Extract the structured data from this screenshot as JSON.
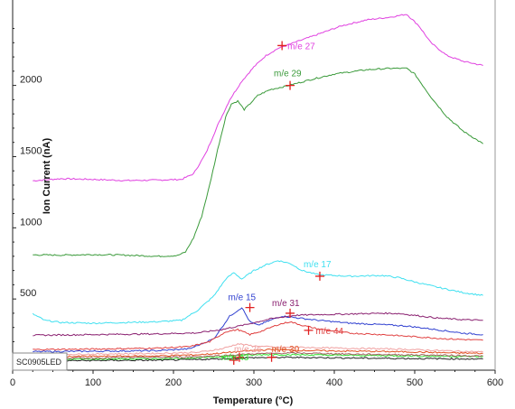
{
  "chart_data": {
    "type": "line",
    "xlabel": "Temperature (°C)",
    "ylabel": "Ion Current (nA)",
    "xlim": [
      0,
      600
    ],
    "ylim": [
      0,
      2600
    ],
    "xticks": [
      0,
      100,
      200,
      300,
      400,
      500,
      600
    ],
    "yticks": [
      500,
      1000,
      1500,
      2000
    ],
    "grid": false,
    "sample_label": "SC0905LED",
    "series": [
      {
        "name": "m/e 27",
        "color": "#e040e0",
        "marker": {
          "x": 335,
          "y": 2280
        },
        "points": [
          [
            25,
            1330
          ],
          [
            60,
            1345
          ],
          [
            100,
            1340
          ],
          [
            140,
            1332
          ],
          [
            180,
            1335
          ],
          [
            210,
            1340
          ],
          [
            225,
            1380
          ],
          [
            240,
            1520
          ],
          [
            255,
            1720
          ],
          [
            270,
            1900
          ],
          [
            285,
            2030
          ],
          [
            300,
            2130
          ],
          [
            315,
            2210
          ],
          [
            330,
            2260
          ],
          [
            350,
            2300
          ],
          [
            380,
            2360
          ],
          [
            410,
            2420
          ],
          [
            440,
            2460
          ],
          [
            470,
            2480
          ],
          [
            490,
            2500
          ],
          [
            505,
            2420
          ],
          [
            520,
            2300
          ],
          [
            540,
            2210
          ],
          [
            560,
            2170
          ],
          [
            585,
            2140
          ]
        ]
      },
      {
        "name": "m/e 29",
        "color": "#3a9a3a",
        "marker": {
          "x": 345,
          "y": 2000
        },
        "points": [
          [
            25,
            810
          ],
          [
            60,
            808
          ],
          [
            100,
            812
          ],
          [
            140,
            808
          ],
          [
            180,
            800
          ],
          [
            205,
            805
          ],
          [
            215,
            830
          ],
          [
            225,
            930
          ],
          [
            235,
            1080
          ],
          [
            245,
            1300
          ],
          [
            255,
            1550
          ],
          [
            265,
            1780
          ],
          [
            272,
            1870
          ],
          [
            280,
            1890
          ],
          [
            288,
            1830
          ],
          [
            295,
            1870
          ],
          [
            305,
            1930
          ],
          [
            320,
            1970
          ],
          [
            340,
            1995
          ],
          [
            370,
            2040
          ],
          [
            400,
            2080
          ],
          [
            440,
            2110
          ],
          [
            470,
            2120
          ],
          [
            490,
            2120
          ],
          [
            500,
            2080
          ],
          [
            520,
            1920
          ],
          [
            540,
            1780
          ],
          [
            560,
            1680
          ],
          [
            585,
            1590
          ]
        ]
      },
      {
        "name": "m/e 17",
        "color": "#40e0f0",
        "marker": {
          "x": 382,
          "y": 660
        },
        "points": [
          [
            25,
            395
          ],
          [
            40,
            350
          ],
          [
            60,
            335
          ],
          [
            100,
            330
          ],
          [
            140,
            335
          ],
          [
            180,
            340
          ],
          [
            210,
            350
          ],
          [
            230,
            420
          ],
          [
            250,
            520
          ],
          [
            265,
            640
          ],
          [
            275,
            685
          ],
          [
            285,
            640
          ],
          [
            300,
            700
          ],
          [
            315,
            740
          ],
          [
            330,
            770
          ],
          [
            345,
            750
          ],
          [
            360,
            700
          ],
          [
            380,
            670
          ],
          [
            420,
            660
          ],
          [
            460,
            665
          ],
          [
            480,
            650
          ],
          [
            500,
            620
          ],
          [
            530,
            580
          ],
          [
            560,
            545
          ],
          [
            585,
            525
          ]
        ]
      },
      {
        "name": "m/e 15",
        "color": "#3040d0",
        "marker": {
          "x": 295,
          "y": 440
        },
        "points": [
          [
            25,
            130
          ],
          [
            100,
            133
          ],
          [
            180,
            137
          ],
          [
            220,
            150
          ],
          [
            250,
            220
          ],
          [
            270,
            380
          ],
          [
            285,
            440
          ],
          [
            295,
            340
          ],
          [
            305,
            315
          ],
          [
            320,
            350
          ],
          [
            335,
            380
          ],
          [
            350,
            370
          ],
          [
            380,
            350
          ],
          [
            420,
            330
          ],
          [
            460,
            320
          ],
          [
            490,
            310
          ],
          [
            520,
            290
          ],
          [
            560,
            260
          ],
          [
            585,
            250
          ]
        ]
      },
      {
        "name": "m/e 31",
        "color": "#8a2070",
        "marker": {
          "x": 345,
          "y": 400
        },
        "points": [
          [
            25,
            245
          ],
          [
            100,
            250
          ],
          [
            180,
            255
          ],
          [
            230,
            262
          ],
          [
            260,
            285
          ],
          [
            290,
            320
          ],
          [
            320,
            360
          ],
          [
            350,
            385
          ],
          [
            380,
            390
          ],
          [
            420,
            395
          ],
          [
            460,
            400
          ],
          [
            480,
            398
          ],
          [
            500,
            385
          ],
          [
            530,
            365
          ],
          [
            560,
            355
          ],
          [
            585,
            350
          ]
        ]
      },
      {
        "name": "m/e 44",
        "color": "#e04040",
        "marker": {
          "x": 368,
          "y": 280
        },
        "points": [
          [
            25,
            145
          ],
          [
            100,
            148
          ],
          [
            180,
            155
          ],
          [
            220,
            165
          ],
          [
            245,
            200
          ],
          [
            265,
            270
          ],
          [
            280,
            285
          ],
          [
            295,
            250
          ],
          [
            310,
            275
          ],
          [
            330,
            320
          ],
          [
            345,
            340
          ],
          [
            360,
            315
          ],
          [
            380,
            290
          ],
          [
            420,
            260
          ],
          [
            460,
            250
          ],
          [
            500,
            235
          ],
          [
            540,
            220
          ],
          [
            585,
            210
          ]
        ]
      },
      {
        "name": "m/e 26",
        "color": "#f0a0a0",
        "marker": {
          "x": 282,
          "y": 90
        },
        "points": [
          [
            25,
            110
          ],
          [
            100,
            113
          ],
          [
            180,
            118
          ],
          [
            230,
            125
          ],
          [
            260,
            150
          ],
          [
            280,
            185
          ],
          [
            300,
            170
          ],
          [
            330,
            160
          ],
          [
            360,
            160
          ],
          [
            400,
            155
          ],
          [
            440,
            152
          ],
          [
            480,
            148
          ],
          [
            520,
            140
          ],
          [
            560,
            132
          ],
          [
            585,
            128
          ]
        ]
      },
      {
        "name": "m/e 30",
        "color": "#e05020",
        "marker": {
          "x": 322,
          "y": 90
        },
        "points": [
          [
            25,
            95
          ],
          [
            100,
            97
          ],
          [
            180,
            100
          ],
          [
            230,
            108
          ],
          [
            260,
            120
          ],
          [
            290,
            135
          ],
          [
            320,
            145
          ],
          [
            350,
            140
          ],
          [
            400,
            135
          ],
          [
            450,
            132
          ],
          [
            500,
            128
          ],
          [
            540,
            122
          ],
          [
            585,
            118
          ]
        ]
      },
      {
        "name": "m/e 43",
        "color": "#30e030",
        "marker": {
          "x": 275,
          "y": 70
        },
        "points": [
          [
            25,
            75
          ],
          [
            100,
            77
          ],
          [
            180,
            80
          ],
          [
            230,
            85
          ],
          [
            260,
            95
          ],
          [
            290,
            105
          ],
          [
            320,
            110
          ],
          [
            360,
            108
          ],
          [
            400,
            105
          ],
          [
            460,
            102
          ],
          [
            520,
            98
          ],
          [
            585,
            95
          ]
        ]
      },
      {
        "name": "",
        "color": "#202020",
        "points": [
          [
            25,
            65
          ],
          [
            100,
            68
          ],
          [
            180,
            70
          ],
          [
            230,
            75
          ],
          [
            270,
            82
          ],
          [
            300,
            88
          ],
          [
            340,
            90
          ],
          [
            380,
            88
          ],
          [
            430,
            85
          ],
          [
            490,
            82
          ],
          [
            540,
            80
          ],
          [
            585,
            78
          ]
        ]
      },
      {
        "name": "",
        "color": "#a06060",
        "points": [
          [
            25,
            85
          ],
          [
            100,
            86
          ],
          [
            180,
            90
          ],
          [
            230,
            95
          ],
          [
            270,
            105
          ],
          [
            300,
            115
          ],
          [
            340,
            120
          ],
          [
            380,
            118
          ],
          [
            430,
            112
          ],
          [
            490,
            108
          ],
          [
            540,
            104
          ],
          [
            585,
            100
          ]
        ]
      }
    ]
  }
}
